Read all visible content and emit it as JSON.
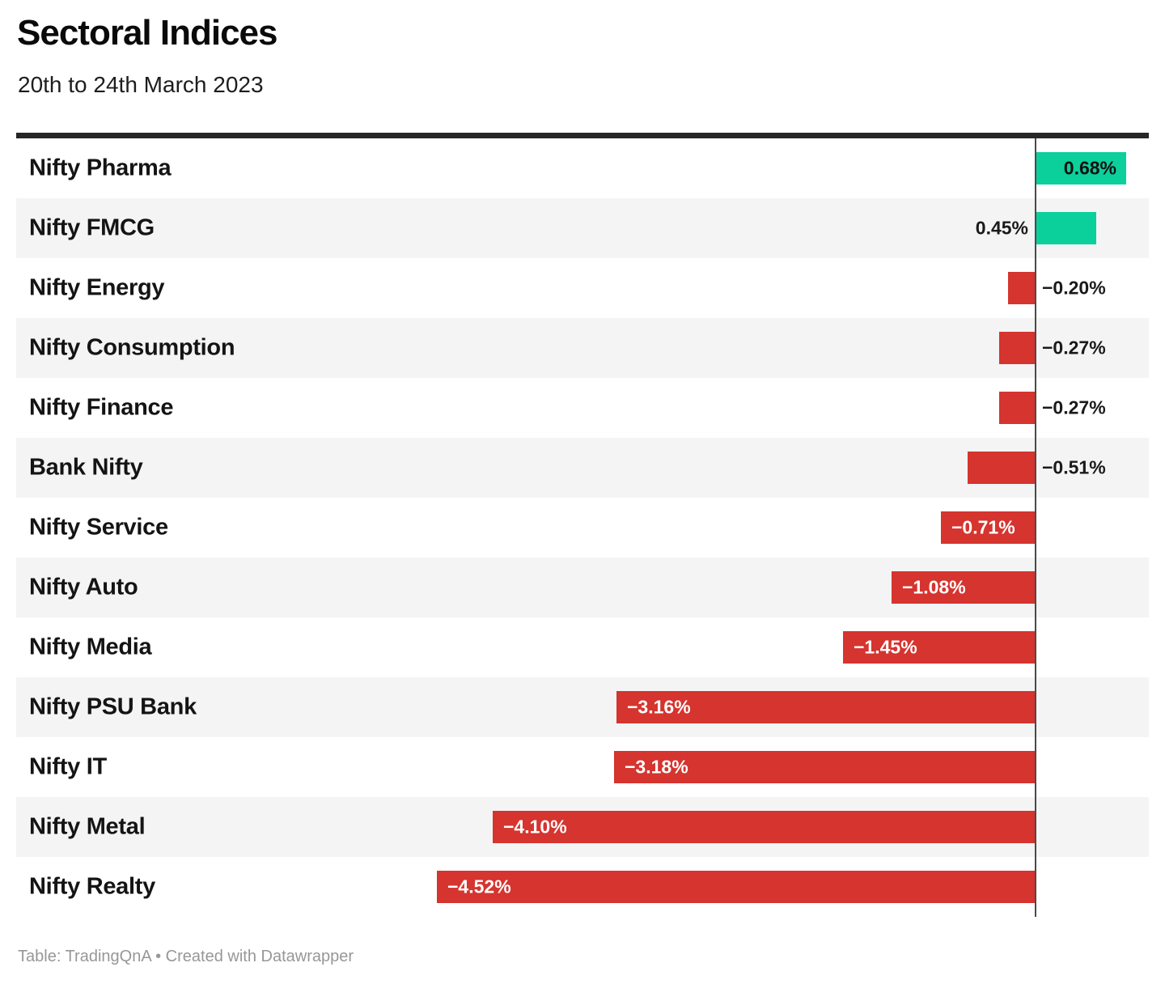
{
  "header": {
    "title": "Sectoral Indices",
    "subtitle": "20th to 24th March 2023"
  },
  "footer": {
    "text": "Table: TradingQnA • Created with Datawrapper"
  },
  "colors": {
    "positive": "#0bd09c",
    "negative": "#d5342f",
    "header_rule": "#262626",
    "baseline": "#4a4a4a",
    "row_stripe": "#f4f4f4",
    "label_dark": "#141414",
    "value_outside": "#1a1a1a",
    "value_inside_negative": "#ffffff",
    "value_inside_positive": "#111111"
  },
  "chart_data": {
    "type": "bar",
    "orientation": "horizontal",
    "title": "Sectoral Indices",
    "subtitle": "20th to 24th March 2023",
    "unit": "%",
    "baseline_value": 0,
    "xlim": [
      -4.6,
      0.9
    ],
    "grid": false,
    "legend": "none",
    "row_striping": "alternating",
    "categories": [
      "Nifty Pharma",
      "Nifty FMCG",
      "Nifty Energy",
      "Nifty Consumption",
      "Nifty Finance",
      "Bank Nifty",
      "Nifty Service",
      "Nifty Auto",
      "Nifty Media",
      "Nifty PSU Bank",
      "Nifty IT",
      "Nifty Metal",
      "Nifty Realty"
    ],
    "values": [
      0.68,
      0.45,
      -0.2,
      -0.27,
      -0.27,
      -0.51,
      -0.71,
      -1.08,
      -1.45,
      -3.16,
      -3.18,
      -4.1,
      -4.52
    ],
    "labels": [
      "0.68%",
      "0.45%",
      "−0.20%",
      "−0.27%",
      "−0.27%",
      "−0.51%",
      "−0.71%",
      "−1.08%",
      "−1.45%",
      "−3.16%",
      "−3.18%",
      "−4.10%",
      "−4.52%"
    ]
  }
}
